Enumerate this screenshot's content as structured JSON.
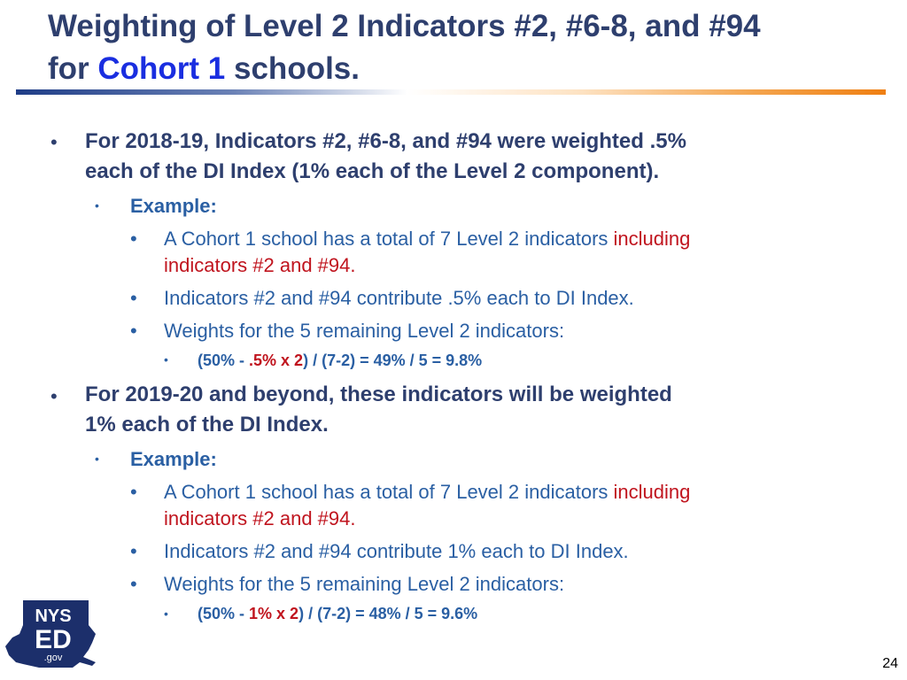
{
  "title": {
    "line1": "Weighting of Level 2 Indicators #2, #6-8, and #94",
    "line2_prefix": "for ",
    "line2_accent": "Cohort 1",
    "line2_suffix": " schools."
  },
  "sections": [
    {
      "heading_line1": "For 2018-19, Indicators #2, #6-8, and #94 were weighted .5%",
      "heading_line2": "each of the DI Index (1% each of the Level 2 component).",
      "example_label": "Example:",
      "item1_line1_blue": "A Cohort 1 school has a total of 7 Level 2 indicators ",
      "item1_line1_red": "including",
      "item1_line2_red": "indicators #2 and #94.",
      "item2": "Indicators #2 and #94 contribute .5% each to DI Index.",
      "item3": "Weights for the 5 remaining Level 2 indicators:",
      "formula": {
        "part1": "(50% - ",
        "red": ".5% x 2",
        "part2": ") / (7-2) = 49% / 5 = 9.8%"
      }
    },
    {
      "heading_line1": "For 2019-20 and beyond, these indicators will be weighted",
      "heading_line2": "1% each of the DI Index.",
      "example_label": "Example:",
      "item1_line1_blue": "A Cohort 1 school has a total of 7 Level 2 indicators ",
      "item1_line1_red": "including",
      "item1_line2_red": "indicators #2 and #94.",
      "item2": "Indicators #2 and #94 contribute 1% each to DI Index.",
      "item3": "Weights for the 5 remaining Level 2 indicators:",
      "formula": {
        "part1": "(50% - ",
        "red": "1% x 2",
        "part2": ") / (7-2) = 48% / 5 = 9.6%"
      }
    }
  ],
  "bullets": {
    "main": "•",
    "example": "•",
    "item": "•",
    "formula": "•"
  },
  "logo": {
    "top": "NYS",
    "middle": "ED",
    "bottom": ".gov"
  },
  "page_number": "24",
  "colors": {
    "title": "#2e3f6e",
    "accent": "#1a2ee0",
    "body_blue": "#2a5fa3",
    "red": "#c0141e"
  }
}
